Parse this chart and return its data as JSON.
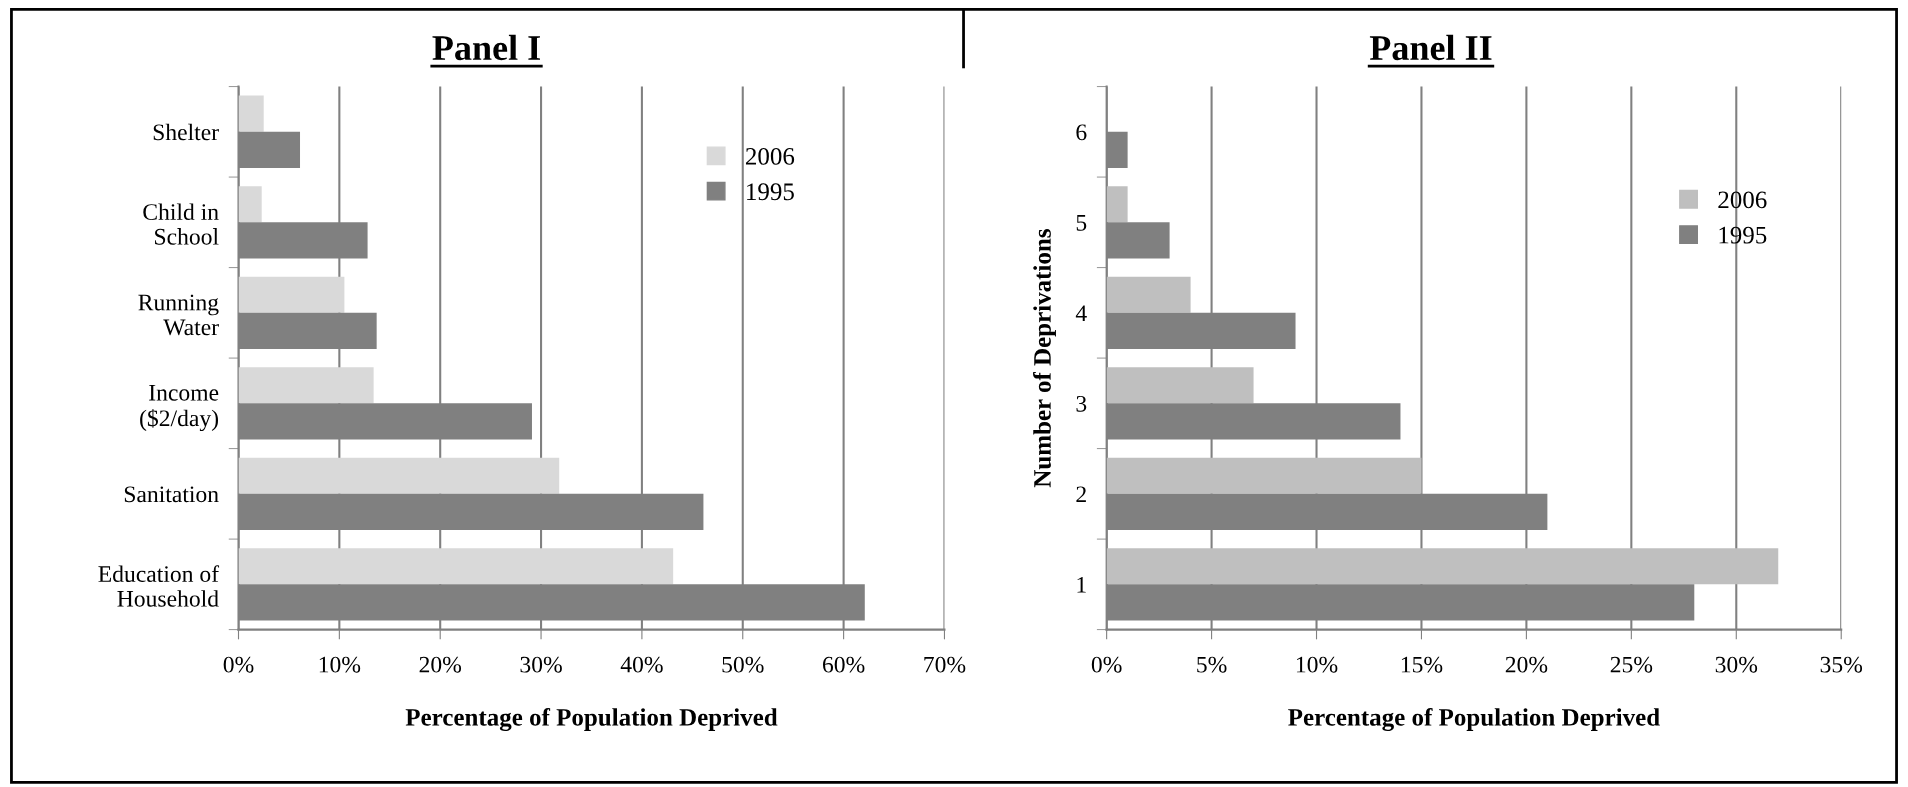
{
  "chart_data": [
    {
      "type": "bar",
      "orientation": "horizontal",
      "title": "Panel I",
      "xlabel": "Percentage of Population Deprived",
      "categories": [
        "Shelter",
        "Child in\nSchool",
        "Running\nWater",
        "Income\n($2/day)",
        "Sanitation",
        "Education of\nHousehold"
      ],
      "series": [
        {
          "name": "2006",
          "color": "#d9d9d9",
          "values": [
            2.5,
            2.3,
            10.5,
            13.4,
            31.8,
            43.1
          ]
        },
        {
          "name": "1995",
          "color": "#808080",
          "values": [
            6.1,
            12.8,
            13.7,
            29.1,
            46.1,
            62.1
          ]
        }
      ],
      "xlim": [
        0,
        70
      ],
      "xticks": [
        {
          "value": 0,
          "label": "0%"
        },
        {
          "value": 10,
          "label": "10%"
        },
        {
          "value": 20,
          "label": "20%"
        },
        {
          "value": 30,
          "label": "30%"
        },
        {
          "value": 40,
          "label": "40%"
        },
        {
          "value": 50,
          "label": "50%"
        },
        {
          "value": 60,
          "label": "60%"
        },
        {
          "value": 70,
          "label": "70%"
        }
      ],
      "grid": "x",
      "legend": "top right"
    },
    {
      "type": "bar",
      "orientation": "horizontal",
      "title": "Panel II",
      "xlabel": "Percentage of Population Deprived",
      "ylabel": "Number of Deprivations",
      "categories": [
        "6",
        "5",
        "4",
        "3",
        "2",
        "1"
      ],
      "series": [
        {
          "name": "2006",
          "color": "#bfbfbf",
          "values": [
            null,
            1.0,
            4.0,
            7.0,
            15.0,
            32.0
          ]
        },
        {
          "name": "1995",
          "color": "#808080",
          "values": [
            1.0,
            3.0,
            9.0,
            14.0,
            21.0,
            28.0
          ]
        }
      ],
      "xlim": [
        0,
        35
      ],
      "xticks": [
        {
          "value": 0,
          "label": "0%"
        },
        {
          "value": 5,
          "label": "5%"
        },
        {
          "value": 10,
          "label": "10%"
        },
        {
          "value": 15,
          "label": "15%"
        },
        {
          "value": 20,
          "label": "20%"
        },
        {
          "value": 25,
          "label": "25%"
        },
        {
          "value": 30,
          "label": "30%"
        },
        {
          "value": 35,
          "label": "35%"
        }
      ],
      "grid": "x",
      "legend": "top right"
    }
  ]
}
